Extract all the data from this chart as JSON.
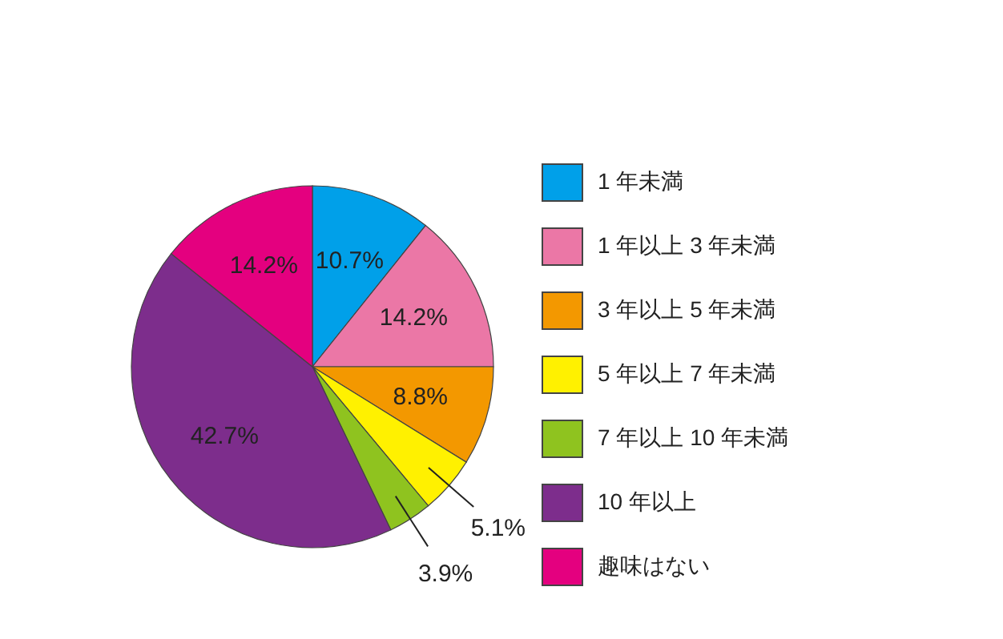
{
  "chart_data": {
    "type": "pie",
    "categories": [
      "1 年未満",
      "1 年以上 3 年未満",
      "3 年以上 5 年未満",
      "5 年以上 7 年未満",
      "7 年以上 10 年未満",
      "10 年以上",
      "趣味はない"
    ],
    "values": [
      10.7,
      14.2,
      8.8,
      5.1,
      3.9,
      42.7,
      14.2
    ],
    "value_labels": [
      "10.7%",
      "14.2%",
      "8.8%",
      "5.1%",
      "3.9%",
      "42.7%",
      "14.2%"
    ],
    "colors": [
      "#00a0e9",
      "#eb77a6",
      "#f39800",
      "#fff100",
      "#8fc31f",
      "#7d2d8c",
      "#e4007f"
    ],
    "legend": "right"
  }
}
